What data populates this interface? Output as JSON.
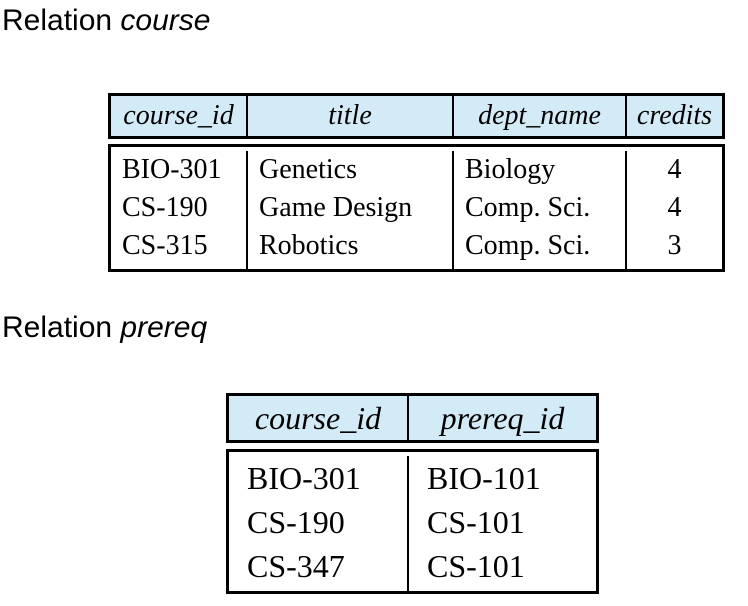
{
  "course_section": {
    "heading_prefix": "Relation ",
    "heading_name": "course",
    "columns": [
      "course_id",
      "title",
      "dept_name",
      "credits"
    ],
    "rows": [
      [
        "BIO-301",
        "Genetics",
        "Biology",
        "4"
      ],
      [
        "CS-190",
        "Game Design",
        "Comp. Sci.",
        "4"
      ],
      [
        "CS-315",
        "Robotics",
        "Comp. Sci.",
        "3"
      ]
    ],
    "header_color": "#d3ebf7"
  },
  "prereq_section": {
    "heading_prefix": "Relation ",
    "heading_name": "prereq",
    "columns": [
      "course_id",
      "prereq_id"
    ],
    "rows": [
      [
        "BIO-301",
        "BIO-101"
      ],
      [
        "CS-190",
        "CS-101"
      ],
      [
        "CS-347",
        "CS-101"
      ]
    ],
    "header_color": "#d3ebf7"
  }
}
